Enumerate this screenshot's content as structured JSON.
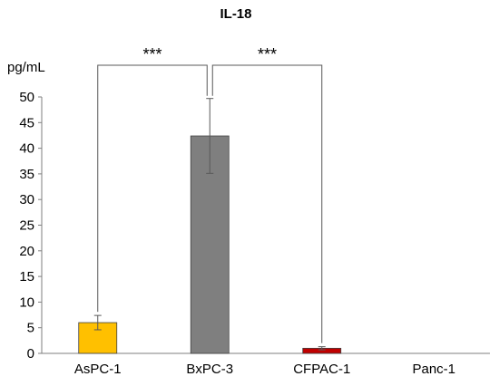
{
  "chart_data": {
    "type": "bar",
    "title": "IL-18",
    "ylabel": "pg/mL",
    "xlabel": "",
    "categories": [
      "AsPC-1",
      "BxPC-3",
      "CFPAC-1",
      "Panc-1"
    ],
    "values": [
      6.0,
      42.4,
      1.0,
      0.0
    ],
    "errors": [
      1.4,
      7.3,
      0.3,
      0.0
    ],
    "colors": [
      "#FFC000",
      "#7F7F7F",
      "#C00000",
      "#FFFFFF"
    ],
    "ylim": [
      0,
      50
    ],
    "yticks": [
      0,
      5,
      10,
      15,
      20,
      25,
      30,
      35,
      40,
      45,
      50
    ],
    "grid": false,
    "legend": "none",
    "significance": [
      {
        "from": "AsPC-1",
        "to": "BxPC-3",
        "label": "***"
      },
      {
        "from": "BxPC-3",
        "to": "CFPAC-1",
        "label": "***"
      }
    ]
  }
}
